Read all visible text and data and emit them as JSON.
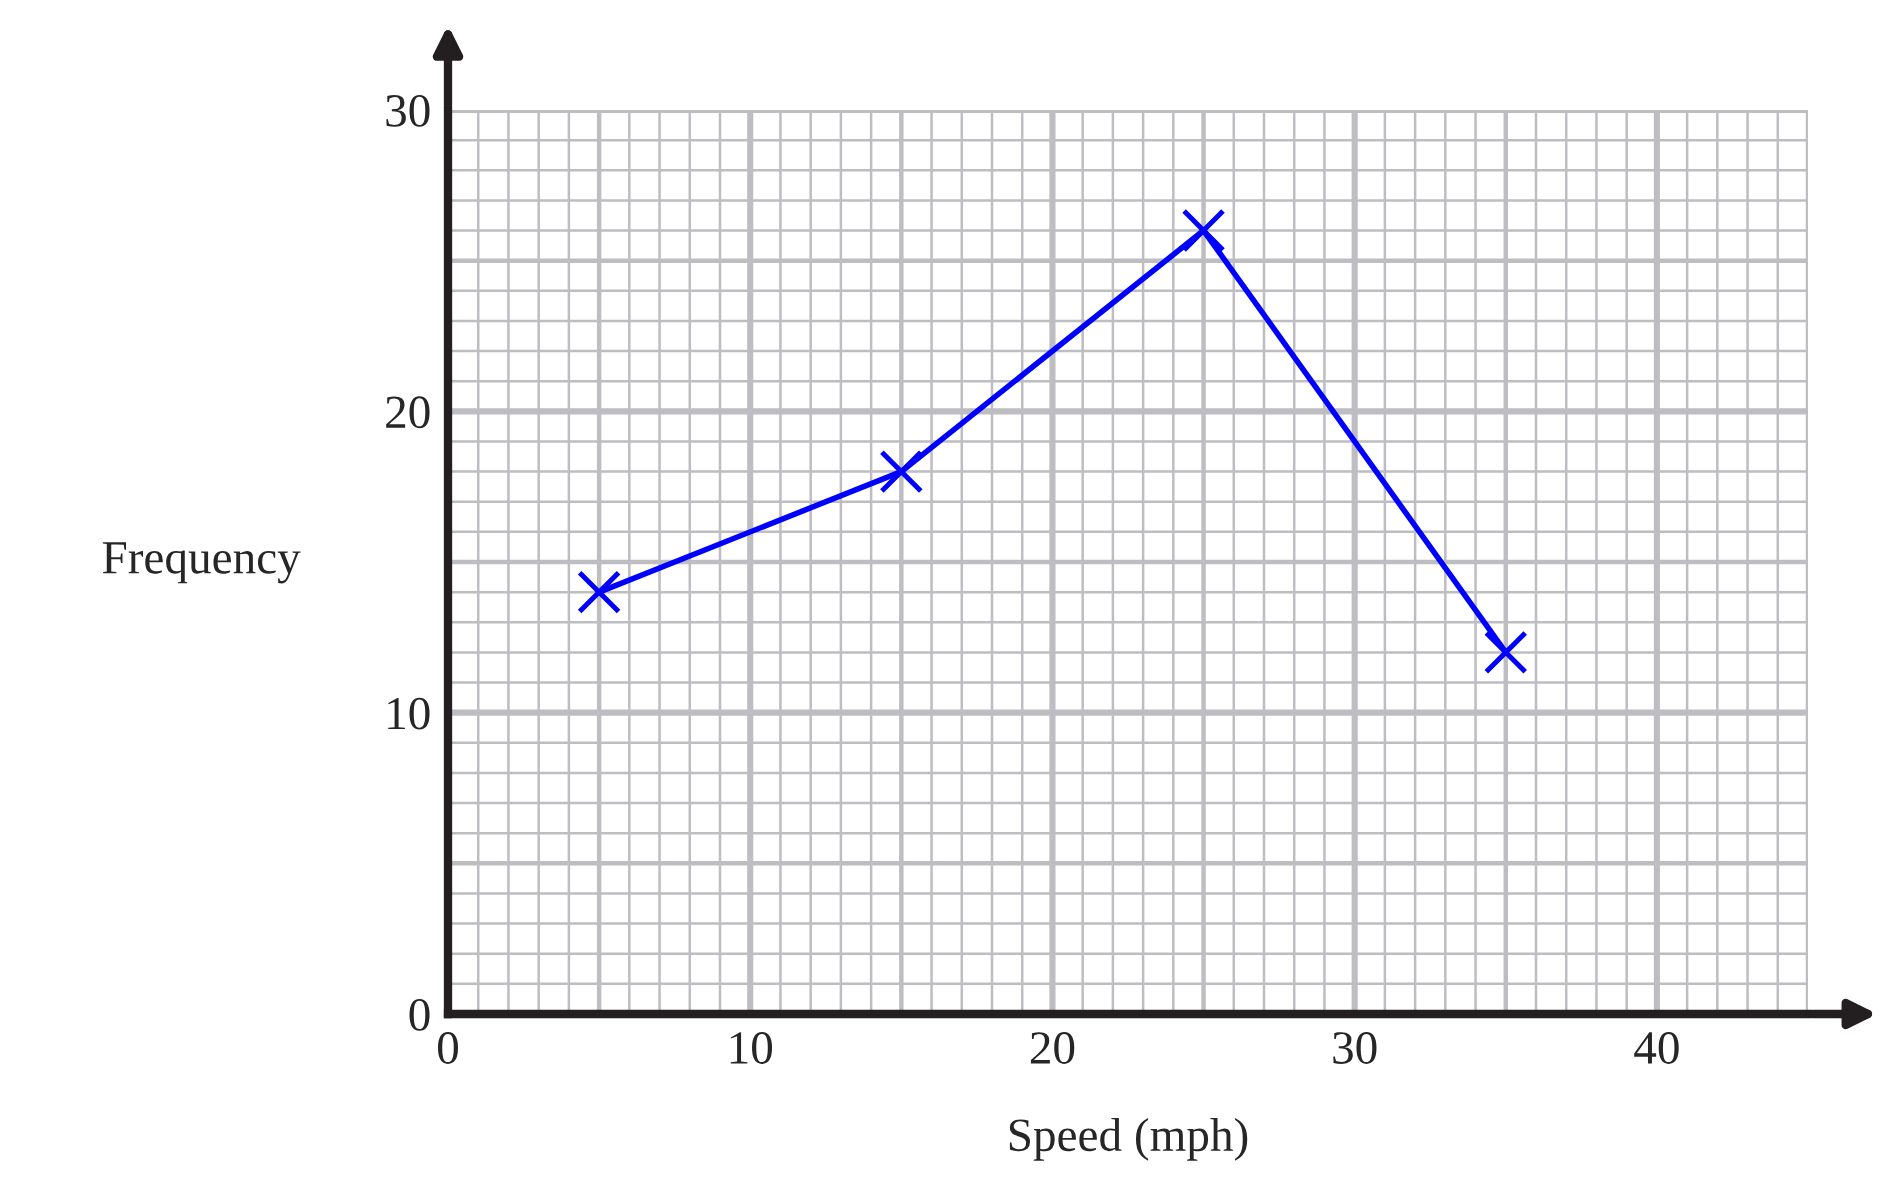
{
  "chart_data": {
    "type": "line",
    "xlabel": "Speed (mph)",
    "ylabel": "Frequency",
    "x": [
      5,
      15,
      25,
      35
    ],
    "series": [
      {
        "color": "#0000ff",
        "values": [
          14,
          18,
          26,
          12
        ]
      }
    ],
    "xlim": [
      0,
      45
    ],
    "ylim": [
      0,
      30
    ],
    "xticks": [
      0,
      10,
      20,
      30,
      40
    ],
    "yticks": [
      0,
      10,
      20,
      30
    ],
    "grid": true,
    "marker": "cross",
    "line_style": "solid"
  }
}
